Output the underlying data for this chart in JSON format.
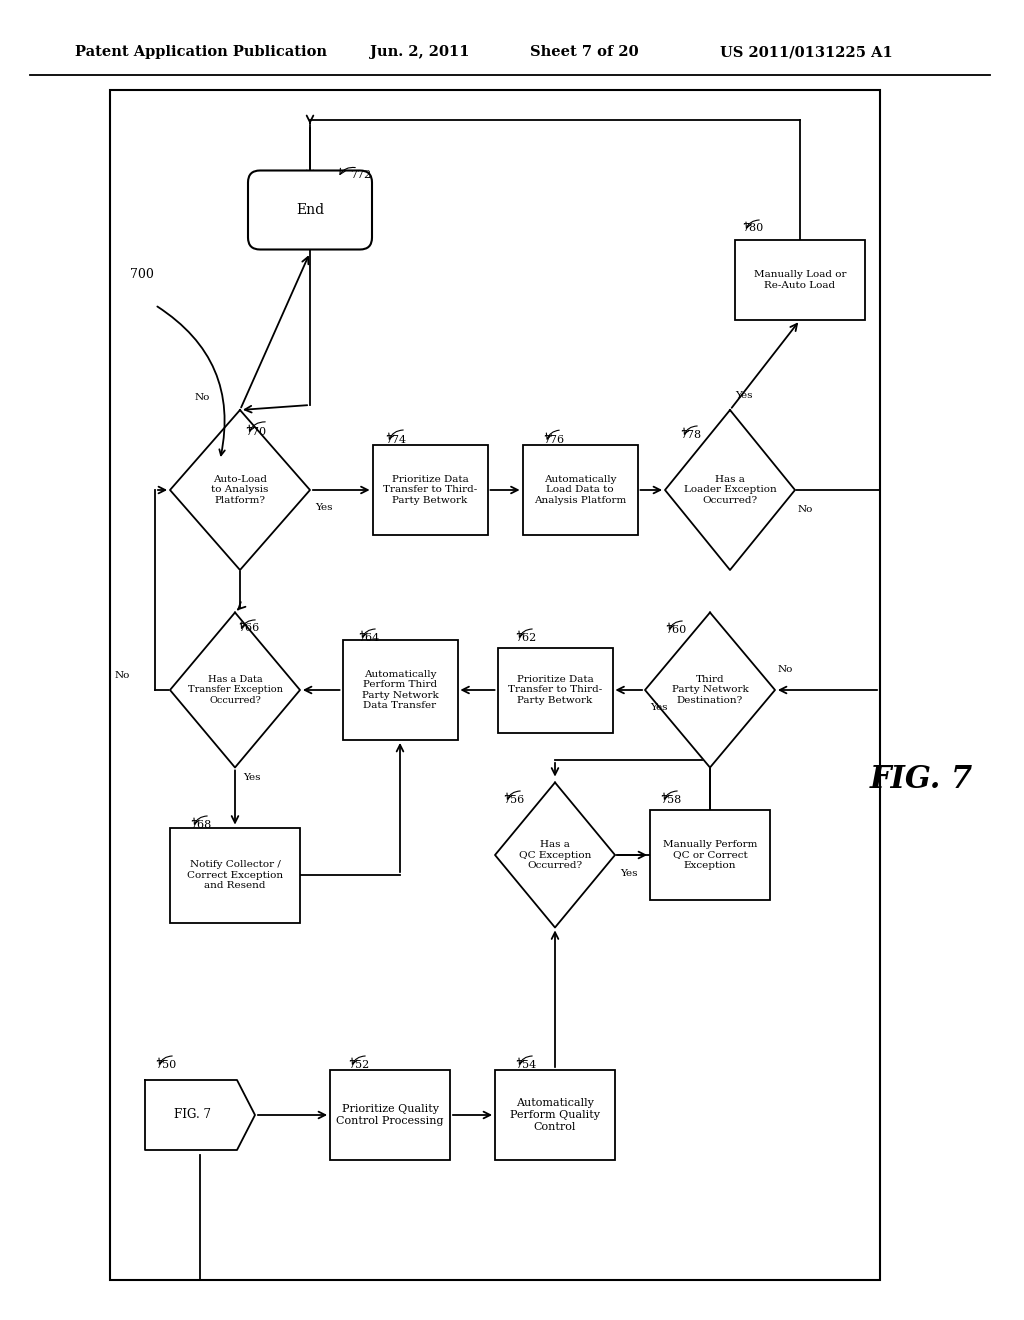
{
  "title_line1": "Patent Application Publication",
  "title_date": "Jun. 2, 2011",
  "title_sheet": "Sheet 7 of 20",
  "title_patent": "US 2011/0131225 A1",
  "fig_label": "FIG. 7",
  "background": "#ffffff"
}
